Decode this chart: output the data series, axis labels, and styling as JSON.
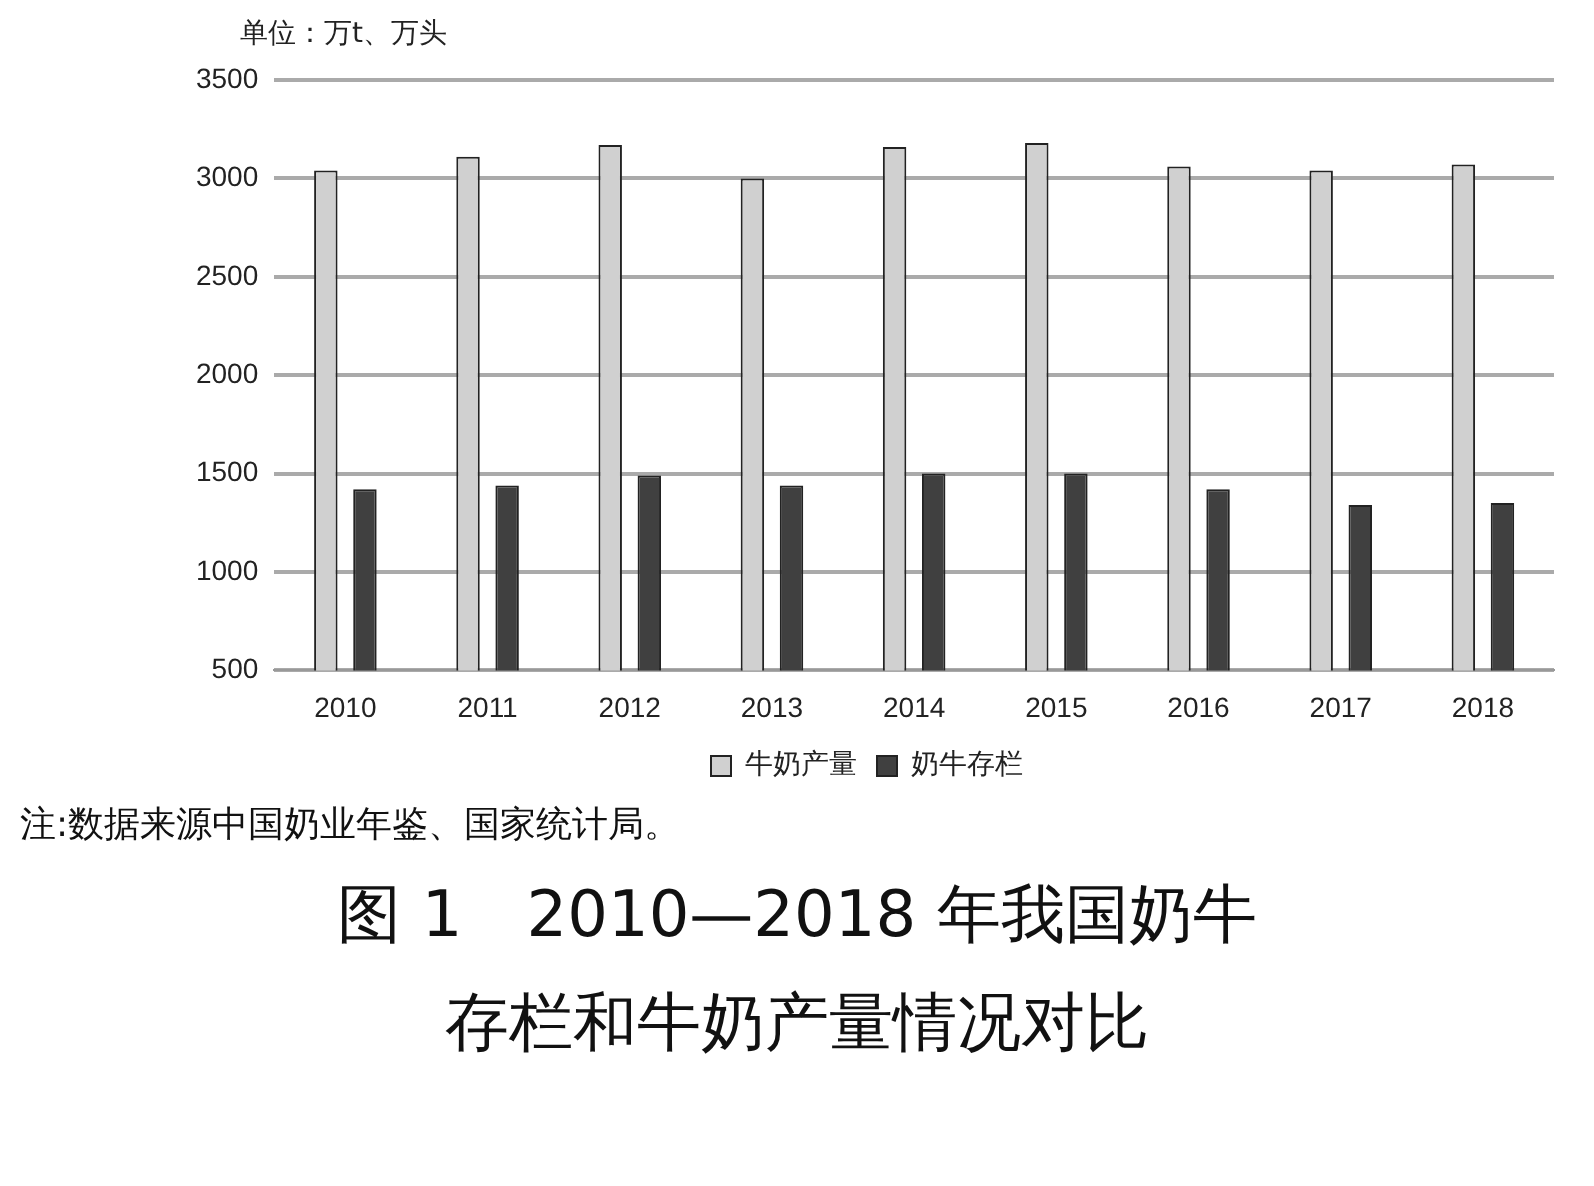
{
  "chart_data": {
    "type": "bar",
    "title": "图 1　2010—2018 年我国奶牛存栏和牛奶产量情况对比",
    "ylabel": "单位：万t、万头",
    "categories": [
      "2010",
      "2011",
      "2012",
      "2013",
      "2014",
      "2015",
      "2016",
      "2017",
      "2018"
    ],
    "series": [
      {
        "name": "牛奶产量",
        "color": "#d0d0d0",
        "values": [
          3040,
          3110,
          3170,
          3000,
          3160,
          3180,
          3060,
          3040,
          3070
        ]
      },
      {
        "name": "奶牛存栏",
        "color": "#404040",
        "values": [
          1420,
          1440,
          1490,
          1440,
          1500,
          1500,
          1420,
          1340,
          1350
        ]
      }
    ],
    "ylim": [
      500,
      3500
    ],
    "yticks": [
      500,
      1000,
      1500,
      2000,
      2500,
      3000,
      3500
    ],
    "grid": "y",
    "legend": "bottom",
    "annotations": [
      "注:数据来源中国奶业年鉴、国家统计局。"
    ]
  }
}
